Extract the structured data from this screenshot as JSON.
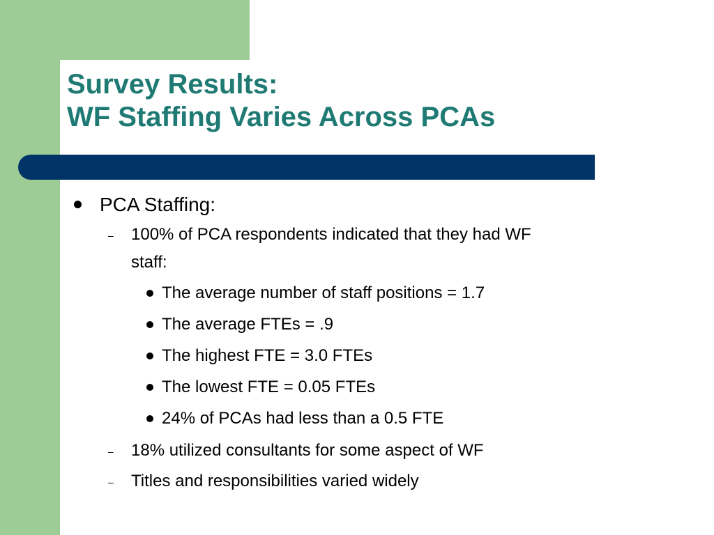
{
  "title": {
    "line1": "Survey Results:",
    "line2": "WF Staffing Varies Across PCAs"
  },
  "colors": {
    "green_accent": "#9dcc96",
    "title_teal": "#1e7a73",
    "navy_bar": "#003366"
  },
  "body": {
    "heading": "PCA Staffing:",
    "items": [
      {
        "text_line1": "100% of PCA respondents indicated that they had WF",
        "text_line2": "staff:",
        "subitems": [
          "The average number of staff positions = 1.7",
          "The average FTEs = .9",
          "The highest FTE = 3.0 FTEs",
          "The lowest FTE = 0.05 FTEs",
          "24% of PCAs had less than a 0.5 FTE"
        ]
      },
      {
        "text": "18% utilized consultants for some aspect of WF"
      },
      {
        "text": "Titles and responsibilities varied widely"
      }
    ]
  }
}
